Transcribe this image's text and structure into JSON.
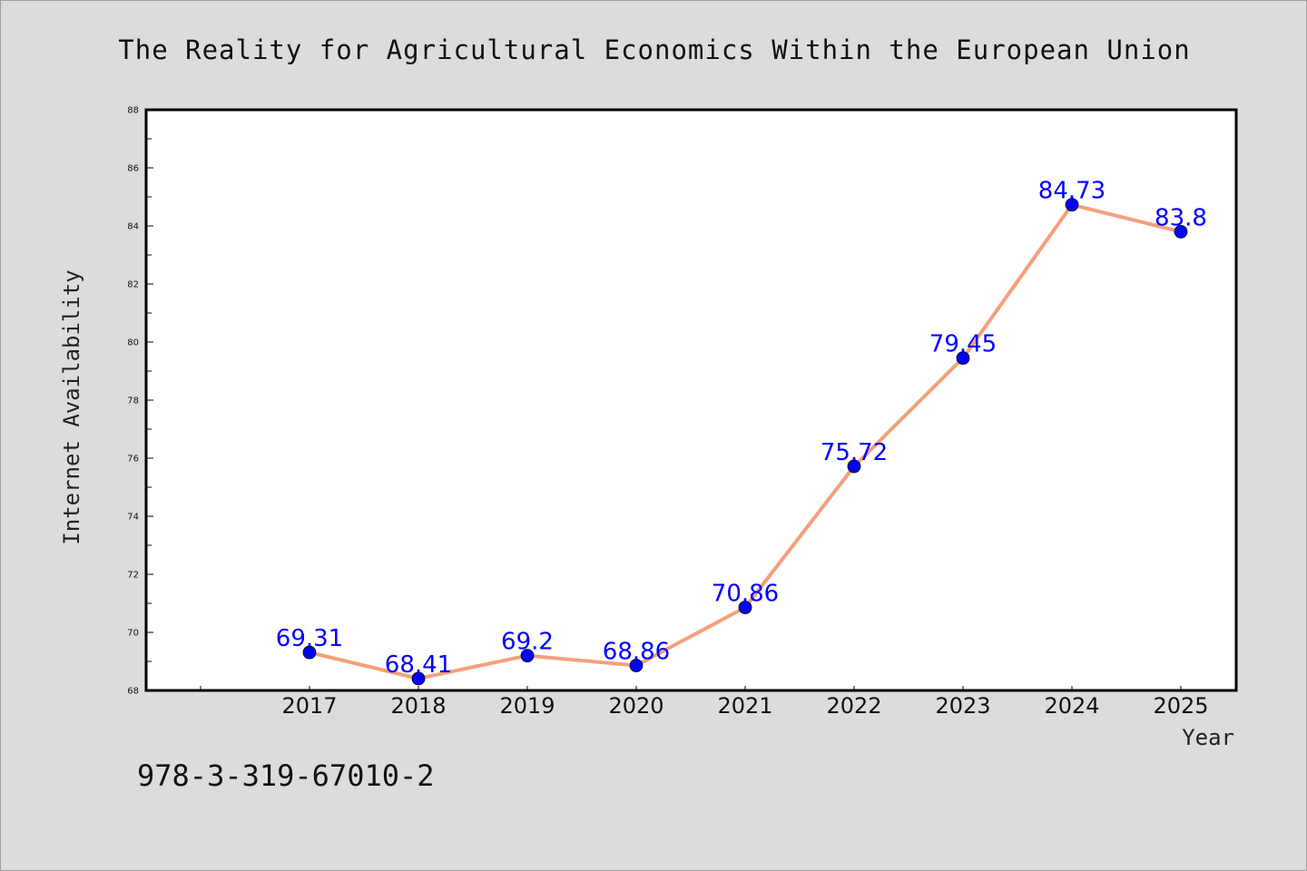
{
  "footer": {
    "code": "978-3-319-67010-2"
  },
  "colors": {
    "background": "#dcdcdc",
    "plot_background": "#ffffff",
    "line": "#f4a07c",
    "marker": "#0000ff",
    "data_label": "#0000ff"
  },
  "chart_data": {
    "type": "line",
    "title": "The Reality for Agricultural Economics Within the European Union",
    "xlabel": "Year",
    "ylabel": "Internet Availability",
    "categories": [
      "2017",
      "2018",
      "2019",
      "2020",
      "2021",
      "2022",
      "2023",
      "2024",
      "2025"
    ],
    "series": [
      {
        "values": [
          69.31,
          68.41,
          69.2,
          68.86,
          70.86,
          75.72,
          79.45,
          84.73,
          83.8
        ]
      }
    ],
    "data_labels": [
      "69.31",
      "68.41",
      "69.2",
      "68.86",
      "70.86",
      "75.72",
      "79.45",
      "84.73",
      "83.8"
    ],
    "ylim": [
      68,
      88
    ],
    "yticks": [
      "68",
      "70",
      "72",
      "74",
      "76",
      "78",
      "80",
      "82",
      "84",
      "86",
      "88"
    ],
    "grid": false,
    "legend": "none"
  }
}
